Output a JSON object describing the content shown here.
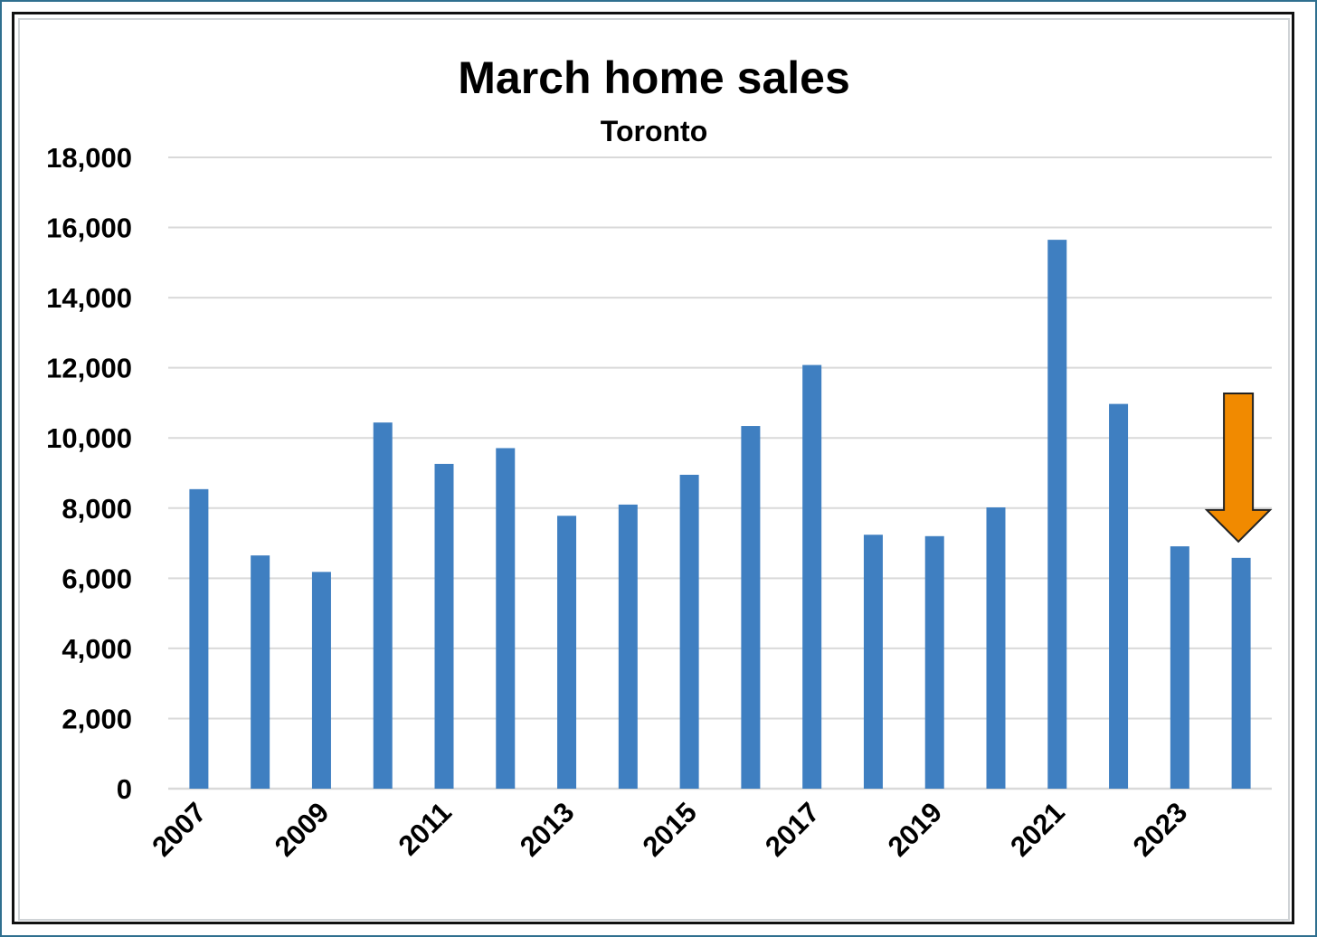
{
  "chart_data": {
    "type": "bar",
    "title": "March home sales",
    "subtitle": "Toronto",
    "categories": [
      "2007",
      "2008",
      "2009",
      "2010",
      "2011",
      "2012",
      "2013",
      "2014",
      "2015",
      "2016",
      "2017",
      "2018",
      "2019",
      "2020",
      "2021",
      "2022",
      "2023",
      "2024"
    ],
    "x_tick_labels": [
      "2007",
      "2009",
      "2011",
      "2013",
      "2015",
      "2017",
      "2019",
      "2021",
      "2023"
    ],
    "values": [
      8540,
      6650,
      6180,
      10440,
      9260,
      9710,
      7780,
      8100,
      8950,
      10340,
      12080,
      7240,
      7200,
      8020,
      15650,
      10970,
      6910,
      6580
    ],
    "ylim": [
      0,
      18000
    ],
    "y_ticks": [
      "0",
      "2,000",
      "4,000",
      "6,000",
      "8,000",
      "10,000",
      "12,000",
      "14,000",
      "16,000",
      "18,000"
    ],
    "grid": true,
    "colors": {
      "bar": "#3f7fc1",
      "grid": "#d9d9d9",
      "arrow": "#f18a00"
    },
    "annotation": {
      "type": "down-arrow",
      "points_to": "2024"
    }
  }
}
